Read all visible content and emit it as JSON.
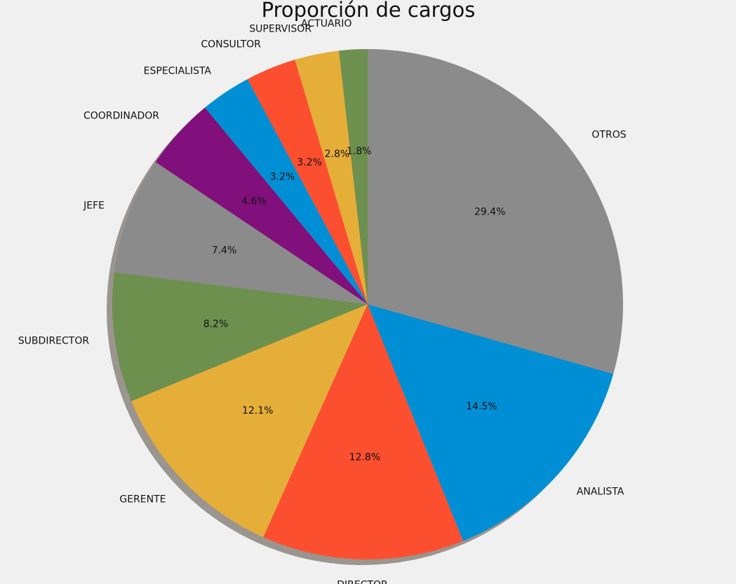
{
  "chart_data": {
    "type": "pie",
    "title": "Proporción de cargos",
    "start_angle_deg": 90,
    "direction": "counterclockwise",
    "shadow": true,
    "slices": [
      {
        "label": "ACTUARIO",
        "value": 1.8,
        "pct_label": "1.8%",
        "color": "#6d904f"
      },
      {
        "label": "SUPERVISOR",
        "value": 2.8,
        "pct_label": "2.8%",
        "color": "#e5ae38"
      },
      {
        "label": "CONSULTOR",
        "value": 3.2,
        "pct_label": "3.2%",
        "color": "#fc4f30"
      },
      {
        "label": "ESPECIALISTA",
        "value": 3.2,
        "pct_label": "3.2%",
        "color": "#008fd5"
      },
      {
        "label": "COORDINADOR",
        "value": 4.6,
        "pct_label": "4.6%",
        "color": "#810f7c"
      },
      {
        "label": "JEFE",
        "value": 7.4,
        "pct_label": "7.4%",
        "color": "#8b8b8b"
      },
      {
        "label": "SUBDIRECTOR",
        "value": 8.2,
        "pct_label": "8.2%",
        "color": "#6d904f"
      },
      {
        "label": "GERENTE",
        "value": 12.1,
        "pct_label": "12.1%",
        "color": "#e5ae38"
      },
      {
        "label": "DIRECTOR",
        "value": 12.8,
        "pct_label": "12.8%",
        "color": "#fc4f30"
      },
      {
        "label": "ANALISTA",
        "value": 14.5,
        "pct_label": "14.5%",
        "color": "#008fd5"
      },
      {
        "label": "OTROS",
        "value": 29.4,
        "pct_label": "29.4%",
        "color": "#8b8b8b"
      }
    ],
    "legend": "none",
    "background_color": "#f0f0f0"
  }
}
